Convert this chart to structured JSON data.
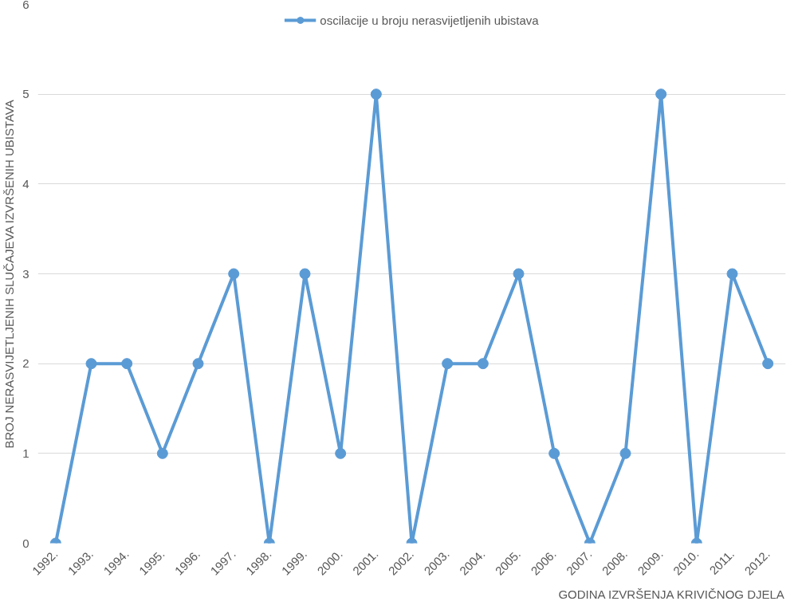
{
  "chart_data": {
    "type": "line",
    "xlabel": "GODINA IZVRŠENJA KRIVIČNOG DJELA",
    "ylabel": "BROJ NERASVIJETLJENIH SLUČAJEVA IZVRŠENIH UBISTAVA",
    "categories": [
      "1992.",
      "1993.",
      "1994.",
      "1995.",
      "1996.",
      "1997.",
      "1998.",
      "1999.",
      "2000.",
      "2001.",
      "2002.",
      "2003.",
      "2004.",
      "2005.",
      "2006.",
      "2007.",
      "2008.",
      "2009.",
      "2010.",
      "2011.",
      "2012."
    ],
    "series": [
      {
        "name": "oscilacije u broju nerasvijetljenih ubistava",
        "color": "#5b9bd5",
        "values": [
          0,
          2,
          2,
          1,
          2,
          3,
          0,
          3,
          1,
          5,
          0,
          2,
          2,
          3,
          1,
          0,
          1,
          5,
          0,
          3,
          2
        ]
      }
    ],
    "ylim": [
      0,
      6
    ],
    "yticks": [
      0,
      1,
      2,
      3,
      4,
      5,
      6
    ],
    "grid": "y",
    "legend": "top",
    "marker": "circle",
    "line_style": "solid"
  }
}
